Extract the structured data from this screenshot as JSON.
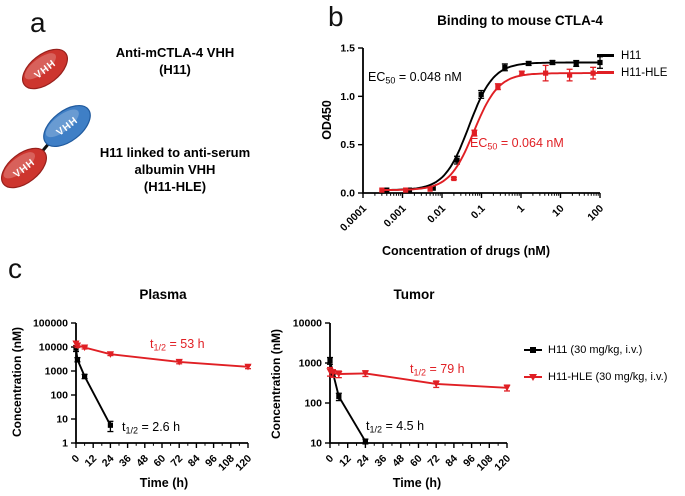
{
  "colors": {
    "series_red": "#e01f24",
    "series_black": "#000000",
    "construct_red": "#cd352e",
    "construct_blue": "#3f7fc6"
  },
  "panel_labels": {
    "a": "a",
    "b": "b",
    "c": "c"
  },
  "panel_a": {
    "construct1": {
      "domain": "VHH",
      "label_line1": "Anti-mCTLA-4 VHH",
      "label_line2": "(H11)"
    },
    "construct2": {
      "domain_blue": "VHH",
      "domain_red": "VHH",
      "label_line1": "H11 linked to anti-serum",
      "label_line2": "albumin VHH",
      "label_line3": "(H11-HLE)"
    }
  },
  "panel_c": {
    "legend": [
      {
        "label": "H11 (30 mg/kg, i.v.)",
        "color": "#000000",
        "marker": "square"
      },
      {
        "label": "H11-HLE (30 mg/kg, i.v.)",
        "color": "#e01f24",
        "marker": "triangle-down"
      }
    ]
  },
  "chart_data": [
    {
      "id": "binding",
      "type": "line",
      "title": "Binding to mouse CTLA-4",
      "xlabel": "Concentration of drugs (nM)",
      "ylabel": "OD450",
      "xscale": "log",
      "xlim": [
        0.0001,
        100
      ],
      "ylim": [
        0,
        1.5
      ],
      "xticks": [
        0.0001,
        0.001,
        0.01,
        0.1,
        1,
        10,
        100
      ],
      "xtick_labels": [
        "0.0001",
        "0.001",
        "0.01",
        "0.1",
        "1",
        "10",
        "100"
      ],
      "yticks": [
        0,
        0.5,
        1,
        1.5
      ],
      "ytick_labels": [
        "0.0",
        "0.5",
        "1.0",
        "1.5"
      ],
      "legend_position": "right-top",
      "legend": [
        {
          "label": "H11",
          "color": "#000000"
        },
        {
          "label": "H11-HLE",
          "color": "#e01f24"
        }
      ],
      "annotations": [
        {
          "pre": "EC",
          "sub": "50",
          "post": " = 0.048 nM",
          "color": "#000000"
        },
        {
          "pre": "EC",
          "sub": "50",
          "post": " = 0.064 nM",
          "color": "#e01f24"
        }
      ],
      "series": [
        {
          "name": "H11",
          "color": "#000000",
          "marker": "square",
          "x": [
            0.0004,
            0.0015,
            0.006,
            0.024,
            0.098,
            0.39,
            1.56,
            6.25,
            25,
            100
          ],
          "y": [
            0.03,
            0.03,
            0.05,
            0.34,
            1.02,
            1.3,
            1.34,
            1.35,
            1.34,
            1.35
          ],
          "err": [
            0,
            0,
            0,
            0.04,
            0.04,
            0.035,
            0.02,
            0.02,
            0.03,
            0.06
          ],
          "fit": {
            "bottom": 0.03,
            "top": 1.35,
            "ec50": 0.048,
            "hill": 1.4
          }
        },
        {
          "name": "H11-HLE",
          "color": "#e01f24",
          "marker": "square",
          "x": [
            0.0003,
            0.0012,
            0.005,
            0.02,
            0.066,
            0.26,
            1.05,
            4.2,
            17,
            67
          ],
          "y": [
            0.03,
            0.03,
            0.04,
            0.15,
            0.62,
            1.1,
            1.24,
            1.24,
            1.22,
            1.24
          ],
          "err": [
            0,
            0,
            0,
            0.01,
            0.03,
            0.03,
            0.02,
            0.08,
            0.06,
            0.06
          ],
          "fit": {
            "bottom": 0.03,
            "top": 1.24,
            "ec50": 0.064,
            "hill": 1.4
          }
        }
      ]
    },
    {
      "id": "plasma",
      "type": "line",
      "title": "Plasma",
      "xlabel": "Time (h)",
      "ylabel": "Concentration (nM)",
      "yscale": "log",
      "xlim": [
        0,
        120
      ],
      "ylim": [
        1,
        100000
      ],
      "xticks": [
        0,
        12,
        24,
        36,
        48,
        60,
        72,
        84,
        96,
        108,
        120
      ],
      "xtick_labels": [
        "0",
        "12",
        "24",
        "36",
        "48",
        "60",
        "72",
        "84",
        "96",
        "108",
        "120"
      ],
      "xminor_step": 6,
      "yticks": [
        1,
        10,
        100,
        1000,
        10000,
        100000
      ],
      "ytick_labels": [
        "1",
        "10",
        "100",
        "1000",
        "10000",
        "100000"
      ],
      "annotations": [
        {
          "pre": "t",
          "sub": "1/2",
          "post": " = 53 h",
          "color": "#e01f24"
        },
        {
          "pre": "t",
          "sub": "1/2",
          "post": " = 2.6 h",
          "color": "#000000"
        }
      ],
      "series": [
        {
          "name": "H11 (30 mg/kg, i.v.)",
          "color": "#000000",
          "marker": "square",
          "x": [
            0,
            1,
            6,
            24
          ],
          "y": [
            9000,
            3000,
            600,
            5.5
          ],
          "err": [
            2500,
            600,
            120,
            2.5
          ]
        },
        {
          "name": "H11-HLE (30 mg/kg, i.v.)",
          "color": "#e01f24",
          "marker": "triangle-down",
          "x": [
            0,
            1,
            6,
            24,
            72,
            120
          ],
          "y": [
            14000,
            11500,
            9500,
            5000,
            2400,
            1500
          ],
          "err": [
            3000,
            2000,
            1200,
            600,
            400,
            250
          ]
        }
      ]
    },
    {
      "id": "tumor",
      "type": "line",
      "title": "Tumor",
      "xlabel": "Time (h)",
      "ylabel": "Concentration (nM)",
      "yscale": "log",
      "xlim": [
        0,
        120
      ],
      "ylim": [
        10,
        10000
      ],
      "xticks": [
        0,
        12,
        24,
        36,
        48,
        60,
        72,
        84,
        96,
        108,
        120
      ],
      "xtick_labels": [
        "0",
        "12",
        "24",
        "36",
        "48",
        "60",
        "72",
        "84",
        "96",
        "108",
        "120"
      ],
      "xminor_step": 6,
      "yticks": [
        10,
        100,
        1000,
        10000
      ],
      "ytick_labels": [
        "10",
        "100",
        "1000",
        "10000"
      ],
      "annotations": [
        {
          "pre": "t",
          "sub": "1/2",
          "post": " = 79 h",
          "color": "#e01f24"
        },
        {
          "pre": "t",
          "sub": "1/2",
          "post": " = 4.5 h",
          "color": "#000000"
        }
      ],
      "series": [
        {
          "name": "H11 (30 mg/kg, i.v.)",
          "color": "#000000",
          "marker": "square",
          "x": [
            0,
            2,
            6,
            24
          ],
          "y": [
            1150,
            560,
            145,
            11
          ],
          "err": [
            220,
            100,
            30,
            1.5
          ]
        },
        {
          "name": "H11-HLE (30 mg/kg, i.v.)",
          "color": "#e01f24",
          "marker": "triangle-down",
          "x": [
            0,
            2,
            6,
            24,
            72,
            120
          ],
          "y": [
            620,
            560,
            530,
            550,
            300,
            240
          ],
          "err": [
            150,
            120,
            100,
            90,
            55,
            40
          ]
        }
      ]
    }
  ]
}
